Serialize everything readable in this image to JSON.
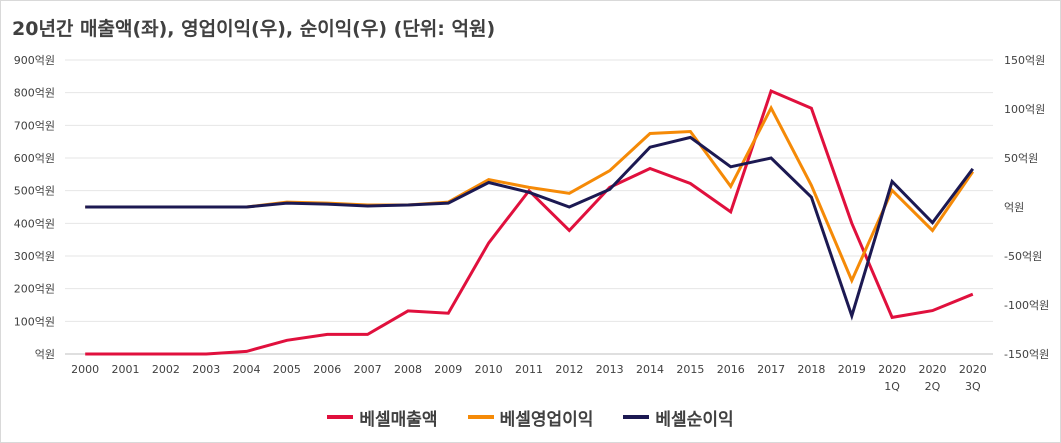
{
  "chart_data": {
    "type": "line",
    "title": "20년간 매출액(좌), 영업이익(우), 순이익(우) (단위: 억원)",
    "categories": [
      [
        "2000"
      ],
      [
        "2001"
      ],
      [
        "2002"
      ],
      [
        "2003"
      ],
      [
        "2004"
      ],
      [
        "2005"
      ],
      [
        "2006"
      ],
      [
        "2007"
      ],
      [
        "2008"
      ],
      [
        "2009"
      ],
      [
        "2010"
      ],
      [
        "2011"
      ],
      [
        "2012"
      ],
      [
        "2013"
      ],
      [
        "2014"
      ],
      [
        "2015"
      ],
      [
        "2016"
      ],
      [
        "2017"
      ],
      [
        "2018"
      ],
      [
        "2019"
      ],
      [
        "2020",
        "1Q"
      ],
      [
        "2020",
        "2Q"
      ],
      [
        "2020",
        "3Q"
      ]
    ],
    "left_axis": {
      "range": [
        0,
        900
      ],
      "ticks": [
        "억원",
        "100억원",
        "200억원",
        "300억원",
        "400억원",
        "500억원",
        "600억원",
        "700억원",
        "800억원",
        "900억원"
      ]
    },
    "right_axis": {
      "range": [
        -150,
        150
      ],
      "ticks": [
        "-150억원",
        "-100억원",
        "-50억원",
        "억원",
        "50억원",
        "100억원",
        "150억원"
      ]
    },
    "series": [
      {
        "name": "베셀매출액",
        "axis": "left",
        "color": "#e0103d",
        "values": [
          0,
          0,
          0,
          0,
          8,
          42,
          60,
          60,
          132,
          125,
          340,
          500,
          378,
          510,
          568,
          522,
          435,
          805,
          752,
          400,
          112,
          133,
          183
        ]
      },
      {
        "name": "베셀영업이익",
        "axis": "right",
        "color": "#f58a07",
        "values": [
          0,
          0,
          0,
          0,
          0,
          5,
          4,
          2,
          2,
          5,
          28,
          20,
          14,
          37,
          75,
          77,
          21,
          101,
          22,
          -75,
          17,
          -24,
          36
        ]
      },
      {
        "name": "베셀순이익",
        "axis": "right",
        "color": "#1c1952",
        "values": [
          0,
          0,
          0,
          0,
          0,
          4,
          3,
          1,
          2,
          4,
          25,
          15,
          0,
          18,
          61,
          71,
          41,
          50,
          10,
          -111,
          26,
          -16,
          39
        ]
      }
    ],
    "legend_position": "bottom",
    "grid": "horizontal"
  }
}
